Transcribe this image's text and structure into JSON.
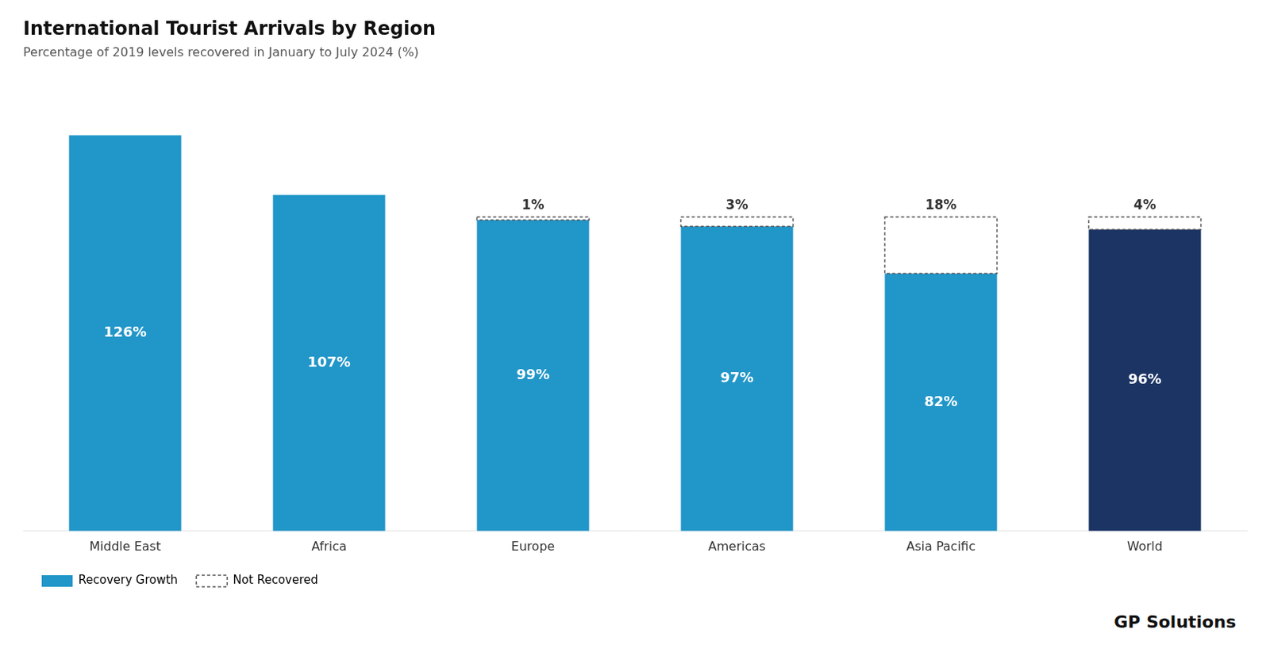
{
  "chart_data": {
    "type": "bar",
    "title": "International Tourist Arrivals by Region",
    "subtitle": "Percentage of 2019 levels recovered in January to July 2024 (%)",
    "categories": [
      "Middle East",
      "Africa",
      "Europe",
      "Americas",
      "Asia Pacific",
      "World"
    ],
    "series": [
      {
        "name": "Recovery Growth",
        "color": "#2196C8",
        "colors": [
          "#2196C8",
          "#2196C8",
          "#2196C8",
          "#2196C8",
          "#2196C8",
          "#1B3464"
        ],
        "values": [
          126,
          107,
          99,
          97,
          82,
          96
        ],
        "value_labels": [
          "126%",
          "107%",
          "99%",
          "97%",
          "82%",
          "96%"
        ]
      },
      {
        "name": "Not Recovered",
        "color": "#555555",
        "line_style": "dashed",
        "values": [
          0,
          0,
          1,
          3,
          18,
          4
        ],
        "value_labels": [
          null,
          null,
          "1%",
          "3%",
          "18%",
          "4%"
        ]
      }
    ],
    "stacked": true,
    "data_labels": true,
    "ylim": [
      0,
      145
    ],
    "grid": false,
    "tick_labels": "x",
    "legend": "bottom-left",
    "annotations": [
      "GP Solutions"
    ]
  }
}
